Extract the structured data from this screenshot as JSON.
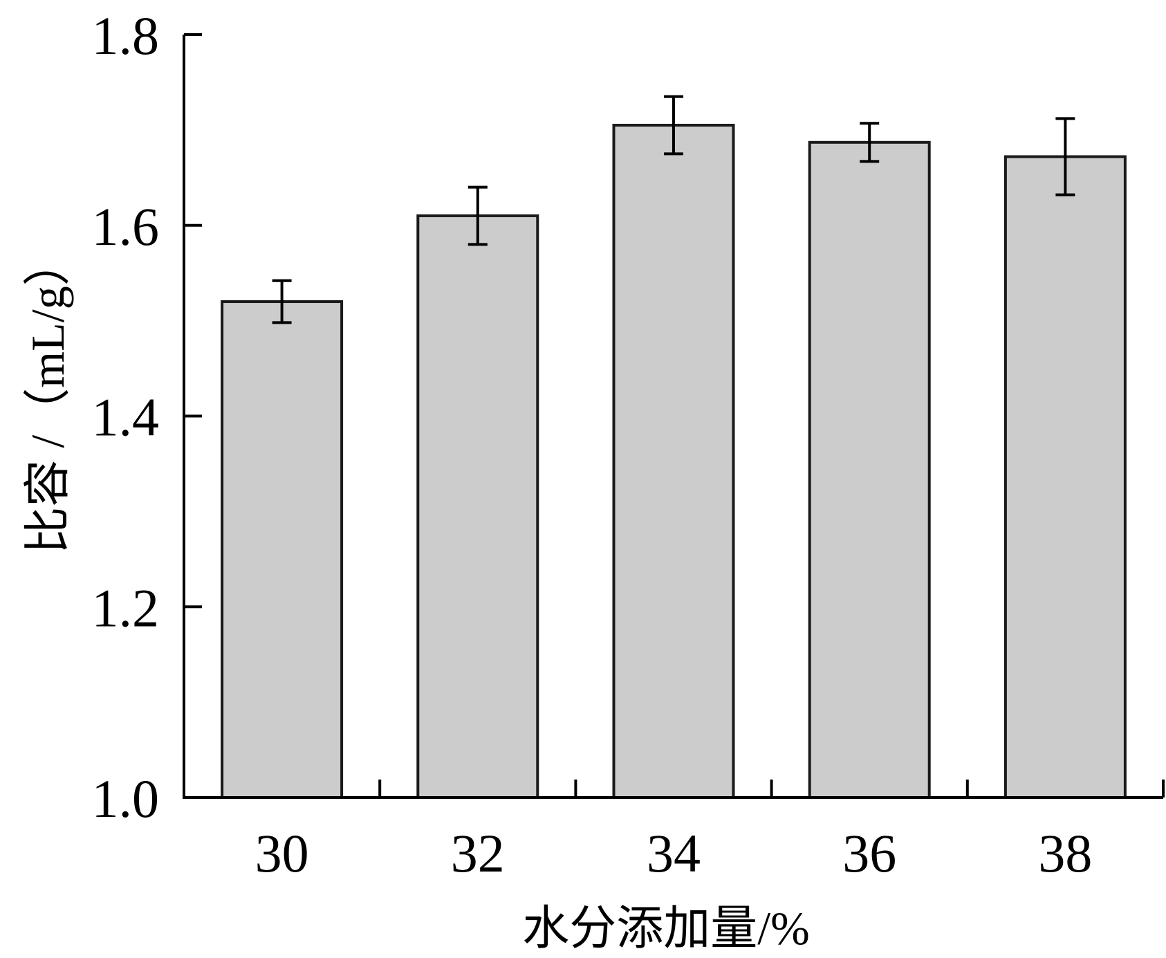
{
  "chart_data": {
    "type": "bar",
    "title": "",
    "xlabel": "水分添加量/%",
    "ylabel": "比容 /（mL/g）",
    "categories": [
      "30",
      "32",
      "34",
      "36",
      "38"
    ],
    "values": [
      1.52,
      1.61,
      1.705,
      1.687,
      1.672
    ],
    "error": [
      0.022,
      0.03,
      0.03,
      0.02,
      0.04
    ],
    "ylim": [
      1.0,
      1.8
    ],
    "yticks": [
      "1.0",
      "1.2",
      "1.4",
      "1.6",
      "1.8"
    ],
    "grid": false,
    "legend": "none",
    "bar_color": "#cccccc",
    "edge_color": "#1a1a1a"
  }
}
